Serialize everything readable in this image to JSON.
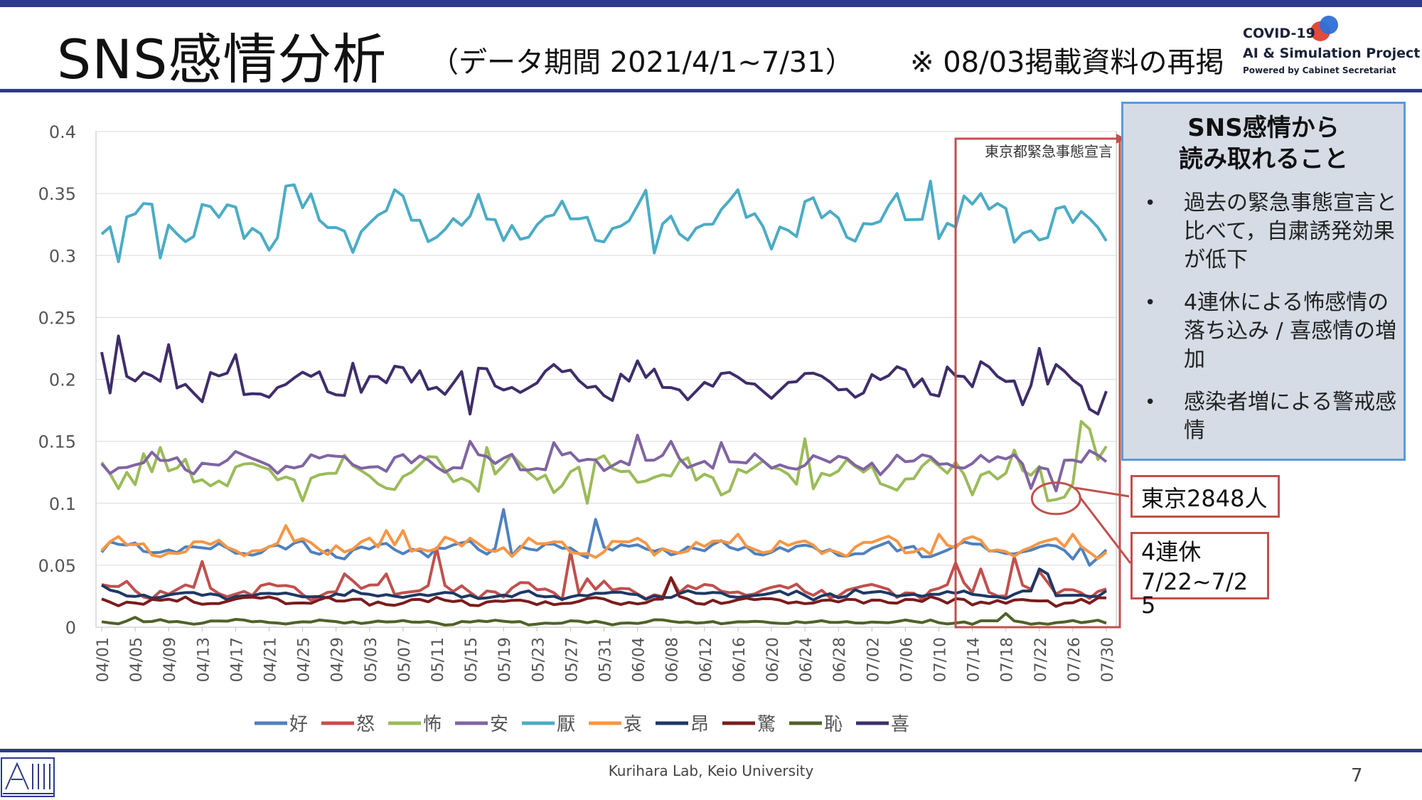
{
  "header": {
    "title": "SNS感情分析",
    "subtitle": "（データ期間 2021/4/1~7/31）",
    "note": "※ 08/03掲載資料の再掲",
    "logo_line1": "COVID-19",
    "logo_line2": "AI & Simulation Project",
    "logo_line3": "Powered by Cabinet Secretariat"
  },
  "panel": {
    "title_line1": "SNS感情から",
    "title_line2": "読み取れること",
    "bullets": [
      "過去の緊急事態宣言と比べて，自粛誘発効果が低下",
      "4連休による怖感情の落ち込み / 喜感情の増加",
      "感染者増による警戒感情"
    ]
  },
  "callouts": {
    "tokyo_cases": "東京2848人",
    "holiday_line1": "4連休",
    "holiday_line2": "7/22~7/2",
    "holiday_line3": "5"
  },
  "footer": {
    "credit": "Kurihara Lab, Keio University",
    "page": "7"
  },
  "colors": {
    "band": "#2e3a8c",
    "好": "#4f81bd",
    "怒": "#c0504d",
    "怖": "#9bbb59",
    "安": "#8064a2",
    "厭": "#4bacc6",
    "哀": "#f79646",
    "昂": "#1f3864",
    "驚": "#7b1c1c",
    "恥": "#4f6228",
    "喜": "#3f2d6b",
    "marker": "#c0504d"
  },
  "chart_data": {
    "type": "line",
    "title": "",
    "xlabel": "",
    "ylabel": "",
    "ylim": [
      0,
      0.4
    ],
    "yticks": [
      "0",
      "0.05",
      "0.1",
      "0.15",
      "0.2",
      "0.25",
      "0.3",
      "0.35",
      "0.4"
    ],
    "x_start": "2021-04-01",
    "x_end": "2021-07-31",
    "tick_labels": [
      "04/01",
      "04/05",
      "04/09",
      "04/13",
      "04/17",
      "04/21",
      "04/25",
      "04/29",
      "05/03",
      "05/07",
      "05/11",
      "05/15",
      "05/19",
      "05/23",
      "05/27",
      "05/31",
      "06/04",
      "06/08",
      "06/12",
      "06/16",
      "06/20",
      "06/24",
      "06/28",
      "07/02",
      "07/06",
      "07/10",
      "07/14",
      "07/18",
      "07/22",
      "07/26",
      "07/30"
    ],
    "grid": "horizontal",
    "legend": "bottom",
    "annotation": {
      "label": "東京都緊急事態宣言",
      "date": "07/12"
    },
    "highlight": {
      "date": "07/24",
      "series": "怖"
    },
    "series": [
      {
        "name": "好",
        "mean": 0.063,
        "amp": 0.004,
        "noise": 0.003,
        "spikes": [
          [
            "05/19",
            0.095
          ],
          [
            "05/30",
            0.087
          ]
        ],
        "end": [
          [
            "07/26",
            0.055
          ],
          [
            "07/28",
            0.05
          ],
          [
            "07/31",
            0.056
          ]
        ]
      },
      {
        "name": "怒",
        "mean": 0.03,
        "amp": 0.004,
        "noise": 0.003,
        "spikes": [
          [
            "04/04",
            0.037
          ],
          [
            "04/13",
            0.053
          ],
          [
            "04/30",
            0.043
          ],
          [
            "05/05",
            0.043
          ],
          [
            "05/11",
            0.064
          ],
          [
            "05/27",
            0.061
          ],
          [
            "05/29",
            0.039
          ],
          [
            "06/08",
            0.04
          ],
          [
            "07/12",
            0.052
          ],
          [
            "07/15",
            0.047
          ],
          [
            "07/19",
            0.057
          ],
          [
            "07/22",
            0.045
          ]
        ],
        "end": []
      },
      {
        "name": "怖",
        "mean": 0.124,
        "amp": 0.009,
        "noise": 0.006,
        "spikes": [
          [
            "04/06",
            0.14
          ],
          [
            "04/08",
            0.145
          ],
          [
            "04/25",
            0.102
          ],
          [
            "05/17",
            0.145
          ],
          [
            "05/29",
            0.1
          ],
          [
            "06/24",
            0.152
          ],
          [
            "07/19",
            0.143
          ],
          [
            "07/23",
            0.102
          ],
          [
            "07/24",
            0.103
          ],
          [
            "07/25",
            0.105
          ],
          [
            "07/27",
            0.166
          ],
          [
            "07/28",
            0.16
          ],
          [
            "07/30",
            0.146
          ],
          [
            "07/31",
            0.149
          ]
        ],
        "end": []
      },
      {
        "name": "安",
        "mean": 0.133,
        "amp": 0.005,
        "noise": 0.004,
        "spikes": [
          [
            "05/15",
            0.15
          ],
          [
            "05/25",
            0.149
          ],
          [
            "06/04",
            0.155
          ],
          [
            "06/08",
            0.15
          ],
          [
            "06/14",
            0.149
          ],
          [
            "07/21",
            0.112
          ],
          [
            "07/24",
            0.11
          ],
          [
            "07/31",
            0.12
          ]
        ],
        "end": []
      },
      {
        "name": "厭",
        "mean": 0.327,
        "amp": 0.013,
        "noise": 0.007,
        "spikes": [
          [
            "04/03",
            0.295
          ],
          [
            "04/08",
            0.298
          ],
          [
            "04/23",
            0.356
          ],
          [
            "04/24",
            0.357
          ],
          [
            "05/07",
            0.348
          ],
          [
            "05/19",
            0.312
          ],
          [
            "05/31",
            0.311
          ],
          [
            "06/06",
            0.302
          ],
          [
            "06/16",
            0.353
          ],
          [
            "07/09",
            0.36
          ],
          [
            "07/11",
            0.326
          ],
          [
            "07/13",
            0.348
          ]
        ],
        "end": []
      },
      {
        "name": "哀",
        "mean": 0.065,
        "amp": 0.005,
        "noise": 0.003,
        "spikes": [
          [
            "04/23",
            0.082
          ],
          [
            "05/05",
            0.078
          ],
          [
            "05/07",
            0.078
          ],
          [
            "06/16",
            0.075
          ],
          [
            "07/10",
            0.075
          ],
          [
            "07/26",
            0.075
          ]
        ],
        "end": []
      },
      {
        "name": "昂",
        "mean": 0.026,
        "amp": 0.002,
        "noise": 0.002,
        "spikes": [
          [
            "04/01",
            0.034
          ],
          [
            "07/22",
            0.047
          ],
          [
            "07/23",
            0.043
          ]
        ],
        "end": []
      },
      {
        "name": "驚",
        "mean": 0.021,
        "amp": 0.002,
        "noise": 0.002,
        "spikes": [
          [
            "06/08",
            0.04
          ],
          [
            "07/12",
            0.023
          ]
        ],
        "end": []
      },
      {
        "name": "恥",
        "mean": 0.004,
        "amp": 0.001,
        "noise": 0.001,
        "spikes": [
          [
            "04/05",
            0.008
          ],
          [
            "07/18",
            0.011
          ]
        ],
        "end": []
      },
      {
        "name": "喜",
        "mean": 0.197,
        "amp": 0.008,
        "noise": 0.006,
        "spikes": [
          [
            "04/01",
            0.222
          ],
          [
            "04/03",
            0.235
          ],
          [
            "04/09",
            0.228
          ],
          [
            "04/13",
            0.182
          ],
          [
            "04/17",
            0.22
          ],
          [
            "05/01",
            0.213
          ],
          [
            "05/09",
            0.207
          ],
          [
            "05/15",
            0.172
          ],
          [
            "05/25",
            0.212
          ],
          [
            "06/04",
            0.215
          ],
          [
            "07/11",
            0.21
          ],
          [
            "07/22",
            0.225
          ],
          [
            "07/24",
            0.212
          ],
          [
            "07/28",
            0.176
          ],
          [
            "07/29",
            0.172
          ],
          [
            "07/31",
            0.189
          ]
        ],
        "end": []
      }
    ]
  }
}
